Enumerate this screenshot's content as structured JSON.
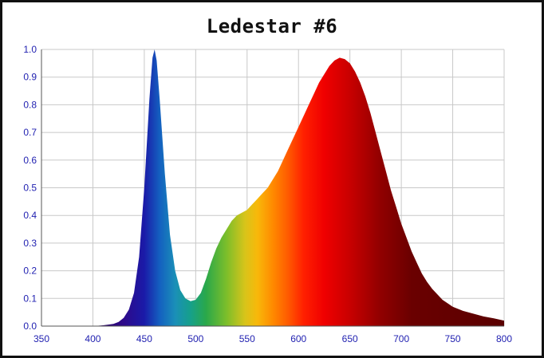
{
  "chart_data": {
    "type": "area",
    "title": "Ledestar #6",
    "xlabel": "",
    "ylabel": "",
    "xlim": [
      350,
      800
    ],
    "ylim": [
      0,
      1.0
    ],
    "grid": true,
    "x_ticks": [
      "350",
      "400",
      "450",
      "500",
      "550",
      "600",
      "650",
      "700",
      "750",
      "800"
    ],
    "y_ticks": [
      "0.0",
      "0.1",
      "0.2",
      "0.3",
      "0.4",
      "0.5",
      "0.6",
      "0.7",
      "0.8",
      "0.9",
      "1.0"
    ],
    "series": [
      {
        "x": [
          350,
          400,
          410,
          420,
          425,
          430,
          435,
          440,
          445,
          450,
          455,
          458,
          460,
          462,
          465,
          470,
          475,
          480,
          485,
          490,
          495,
          500,
          505,
          510,
          515,
          520,
          525,
          530,
          535,
          540,
          545,
          550,
          555,
          560,
          565,
          570,
          575,
          580,
          585,
          590,
          595,
          600,
          605,
          610,
          615,
          620,
          625,
          630,
          635,
          640,
          645,
          650,
          655,
          660,
          665,
          670,
          675,
          680,
          685,
          690,
          695,
          700,
          705,
          710,
          715,
          720,
          725,
          730,
          740,
          750,
          760,
          770,
          780,
          790,
          800
        ],
        "y": [
          0.0,
          0.0,
          0.003,
          0.008,
          0.015,
          0.03,
          0.06,
          0.12,
          0.25,
          0.5,
          0.82,
          0.97,
          1.0,
          0.96,
          0.82,
          0.55,
          0.33,
          0.2,
          0.13,
          0.1,
          0.09,
          0.095,
          0.12,
          0.17,
          0.23,
          0.28,
          0.32,
          0.35,
          0.38,
          0.4,
          0.41,
          0.42,
          0.44,
          0.46,
          0.48,
          0.5,
          0.53,
          0.56,
          0.6,
          0.64,
          0.68,
          0.72,
          0.76,
          0.8,
          0.84,
          0.88,
          0.91,
          0.94,
          0.96,
          0.97,
          0.965,
          0.95,
          0.92,
          0.88,
          0.83,
          0.77,
          0.7,
          0.63,
          0.56,
          0.49,
          0.43,
          0.37,
          0.32,
          0.27,
          0.23,
          0.19,
          0.16,
          0.135,
          0.095,
          0.07,
          0.055,
          0.045,
          0.035,
          0.028,
          0.02
        ]
      }
    ]
  },
  "colors": {
    "tick_labels": "#1f1fb0",
    "grid": "#c8c8c8",
    "axis": "#555555",
    "border": "#111111"
  }
}
